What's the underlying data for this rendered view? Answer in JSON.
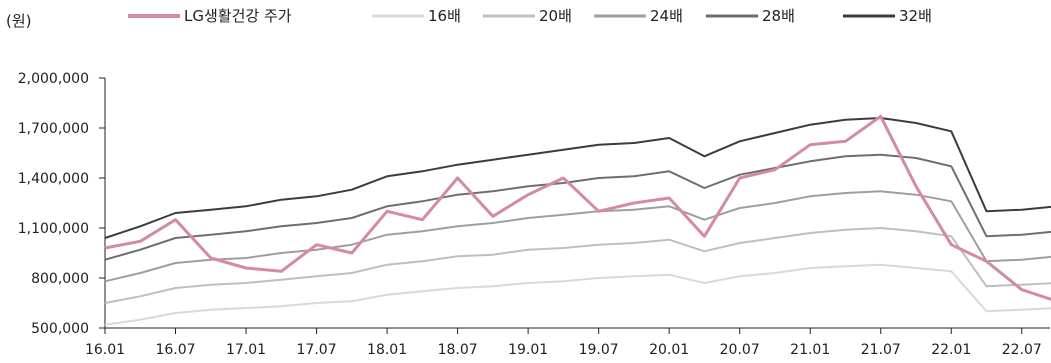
{
  "unit_label": "(원)",
  "chart_data": {
    "type": "line",
    "title": "",
    "xlabel": "",
    "ylabel": "(원)",
    "ylim": [
      500000,
      2000000
    ],
    "y_ticks": [
      "500,000",
      "800,000",
      "1,100,000",
      "1,400,000",
      "1,700,000",
      "2,000,000"
    ],
    "y_tick_values": [
      500000,
      800000,
      1100000,
      1400000,
      1700000,
      2000000
    ],
    "x_ticks": [
      "16.01",
      "16.07",
      "17.01",
      "17.07",
      "18.01",
      "18.07",
      "19.01",
      "19.07",
      "20.01",
      "20.07",
      "21.01",
      "21.07",
      "22.01",
      "22.07"
    ],
    "x_range": [
      "2016-01",
      "2022-10"
    ],
    "grid": false,
    "legend_position": "top",
    "x": [
      "16.01",
      "16.04",
      "16.07",
      "16.10",
      "17.01",
      "17.04",
      "17.07",
      "17.10",
      "18.01",
      "18.04",
      "18.07",
      "18.10",
      "19.01",
      "19.04",
      "19.07",
      "19.10",
      "20.01",
      "20.04",
      "20.07",
      "20.10",
      "21.01",
      "21.04",
      "21.07",
      "21.10",
      "22.01",
      "22.04",
      "22.07",
      "22.10"
    ],
    "series": [
      {
        "name": "LG생활건강 주가",
        "color": "#d48aa0",
        "values": [
          980000,
          1020000,
          1150000,
          920000,
          860000,
          840000,
          1000000,
          950000,
          1200000,
          1150000,
          1400000,
          1170000,
          1300000,
          1400000,
          1200000,
          1250000,
          1280000,
          1050000,
          1400000,
          1450000,
          1600000,
          1620000,
          1770000,
          1350000,
          1000000,
          900000,
          730000,
          660000
        ]
      },
      {
        "name": "16배",
        "color": "#d9d9d9",
        "values": [
          520000,
          550000,
          590000,
          610000,
          620000,
          630000,
          650000,
          660000,
          700000,
          720000,
          740000,
          750000,
          770000,
          780000,
          800000,
          810000,
          820000,
          770000,
          810000,
          830000,
          860000,
          870000,
          880000,
          860000,
          840000,
          600000,
          610000,
          620000
        ]
      },
      {
        "name": "20배",
        "color": "#bfbfbf",
        "values": [
          650000,
          690000,
          740000,
          760000,
          770000,
          790000,
          810000,
          830000,
          880000,
          900000,
          930000,
          940000,
          970000,
          980000,
          1000000,
          1010000,
          1030000,
          960000,
          1010000,
          1040000,
          1070000,
          1090000,
          1100000,
          1080000,
          1050000,
          750000,
          760000,
          770000
        ]
      },
      {
        "name": "24배",
        "color": "#9e9e9e",
        "values": [
          780000,
          830000,
          890000,
          910000,
          920000,
          950000,
          970000,
          1000000,
          1060000,
          1080000,
          1110000,
          1130000,
          1160000,
          1180000,
          1200000,
          1210000,
          1230000,
          1150000,
          1220000,
          1250000,
          1290000,
          1310000,
          1320000,
          1300000,
          1260000,
          900000,
          910000,
          930000
        ]
      },
      {
        "name": "28배",
        "color": "#6e6e6e",
        "values": [
          910000,
          970000,
          1040000,
          1060000,
          1080000,
          1110000,
          1130000,
          1160000,
          1230000,
          1260000,
          1300000,
          1320000,
          1350000,
          1370000,
          1400000,
          1410000,
          1440000,
          1340000,
          1420000,
          1460000,
          1500000,
          1530000,
          1540000,
          1520000,
          1470000,
          1050000,
          1060000,
          1080000
        ]
      },
      {
        "name": "32배",
        "color": "#3c3c3c",
        "values": [
          1040000,
          1110000,
          1190000,
          1210000,
          1230000,
          1270000,
          1290000,
          1330000,
          1410000,
          1440000,
          1480000,
          1510000,
          1540000,
          1570000,
          1600000,
          1610000,
          1640000,
          1530000,
          1620000,
          1670000,
          1720000,
          1750000,
          1760000,
          1730000,
          1680000,
          1200000,
          1210000,
          1230000
        ]
      }
    ]
  }
}
